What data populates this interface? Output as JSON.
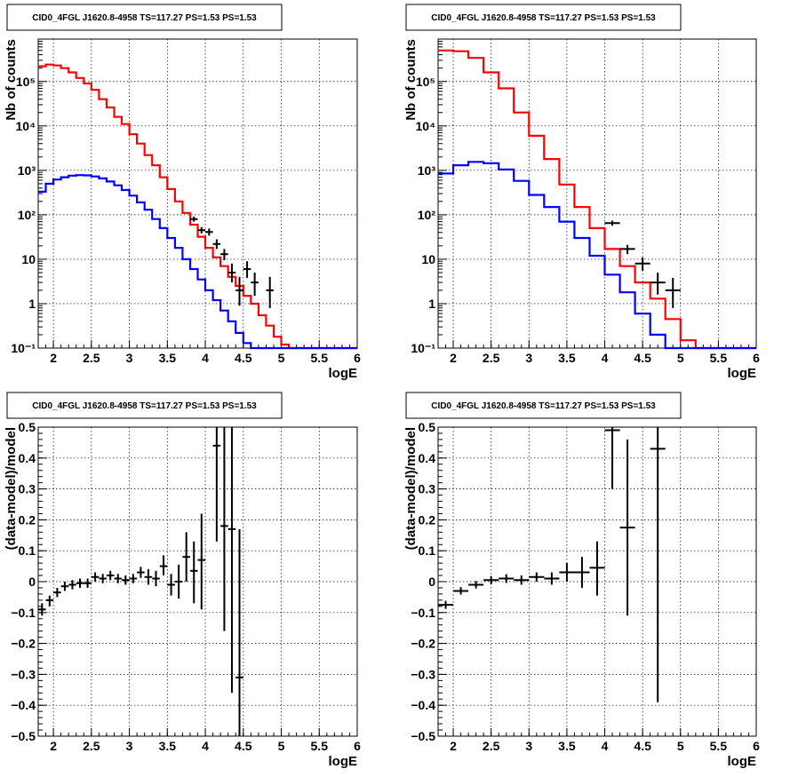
{
  "chart_data": [
    {
      "type": "line",
      "title": "CID0_4FGL J1620.8-4958 TS=117.27 PS=1.53 PS=1.53",
      "xlabel": "logE",
      "ylabel": "Nb of counts",
      "log_y": true,
      "grid": true,
      "xlim": [
        1.8,
        6
      ],
      "ylim": [
        0.1,
        900000
      ],
      "xticks": [
        2,
        2.5,
        3,
        3.5,
        4,
        4.5,
        5,
        5.5,
        6
      ],
      "xtick_labels": [
        "2",
        "2.5",
        "3",
        "3.5",
        "4",
        "4.5",
        "5",
        "5.5",
        "6"
      ],
      "yticks": [
        0.1,
        1,
        10,
        100,
        1000,
        10000,
        100000
      ],
      "ytick_labels": [
        "10⁻¹",
        "1",
        "10",
        "10²",
        "10³",
        "10⁴",
        "10⁵"
      ],
      "series": [
        {
          "style": "step",
          "color": "#ff0000",
          "edges": [
            1.8,
            1.9,
            2.0,
            2.1,
            2.2,
            2.3,
            2.4,
            2.5,
            2.6,
            2.7,
            2.8,
            2.9,
            3.0,
            3.1,
            3.2,
            3.3,
            3.4,
            3.5,
            3.6,
            3.7,
            3.8,
            3.9,
            4.0,
            4.1,
            4.2,
            4.3,
            4.4,
            4.5,
            4.6,
            4.7,
            4.8,
            4.9,
            5.0,
            5.1,
            5.2,
            5.3,
            5.4,
            5.5,
            5.6,
            5.7,
            5.8,
            5.9,
            6.0
          ],
          "values": [
            220000,
            240000,
            230000,
            200000,
            160000,
            120000,
            90000,
            65000,
            40000,
            26000,
            16000,
            11000,
            6500,
            4000,
            2200,
            1300,
            700,
            380,
            200,
            110,
            60,
            32,
            18,
            11,
            7,
            4,
            2.5,
            1.5,
            1,
            0.55,
            0.32,
            0.18,
            0.12,
            0.1,
            0.1,
            0.1,
            0.1,
            0.1,
            0.1,
            0.1,
            0.1,
            0.1
          ]
        },
        {
          "style": "step",
          "color": "#0000ff",
          "edges": [
            1.8,
            1.9,
            2.0,
            2.1,
            2.2,
            2.3,
            2.4,
            2.5,
            2.6,
            2.7,
            2.8,
            2.9,
            3.0,
            3.1,
            3.2,
            3.3,
            3.4,
            3.5,
            3.6,
            3.7,
            3.8,
            3.9,
            4.0,
            4.1,
            4.2,
            4.3,
            4.4,
            4.5,
            4.6,
            4.7,
            4.8,
            4.9,
            5.0,
            5.1,
            5.2,
            5.3,
            5.4,
            5.5,
            5.6,
            5.7,
            5.8,
            5.9,
            6.0
          ],
          "values": [
            330,
            500,
            620,
            700,
            760,
            780,
            770,
            730,
            660,
            560,
            460,
            360,
            270,
            190,
            130,
            80,
            50,
            30,
            18,
            10,
            6,
            3.5,
            2,
            1.2,
            0.7,
            0.4,
            0.22,
            0.13,
            0.1,
            0.1,
            0.1,
            0.1,
            0.1,
            0.1,
            0.1,
            0.1,
            0.1,
            0.1,
            0.1,
            0.1,
            0.1,
            0.1
          ]
        },
        {
          "style": "errorbar",
          "color": "#000000",
          "points": [
            {
              "x": 3.85,
              "y": 80,
              "xerr": 0.05,
              "ylo": 70,
              "yhi": 91
            },
            {
              "x": 3.95,
              "y": 45,
              "xerr": 0.05,
              "ylo": 38,
              "yhi": 53
            },
            {
              "x": 4.05,
              "y": 41,
              "xerr": 0.05,
              "ylo": 34,
              "yhi": 49
            },
            {
              "x": 4.15,
              "y": 22,
              "xerr": 0.05,
              "ylo": 17,
              "yhi": 28
            },
            {
              "x": 4.25,
              "y": 13,
              "xerr": 0.05,
              "ylo": 9.5,
              "yhi": 17
            },
            {
              "x": 4.35,
              "y": 5,
              "xerr": 0.05,
              "ylo": 3,
              "yhi": 8
            },
            {
              "x": 4.45,
              "y": 2,
              "xerr": 0.05,
              "ylo": 0.9,
              "yhi": 4
            },
            {
              "x": 4.55,
              "y": 6,
              "xerr": 0.05,
              "ylo": 3.8,
              "yhi": 9
            },
            {
              "x": 4.65,
              "y": 3,
              "xerr": 0.05,
              "ylo": 1.5,
              "yhi": 5
            },
            {
              "x": 4.85,
              "y": 2,
              "xerr": 0.05,
              "ylo": 0.8,
              "yhi": 4
            }
          ]
        }
      ]
    },
    {
      "type": "line",
      "title": "CID0_4FGL J1620.8-4958 TS=117.27 PS=1.53 PS=1.53",
      "xlabel": "logE",
      "ylabel": "Nb of counts",
      "log_y": true,
      "grid": true,
      "xlim": [
        1.8,
        6
      ],
      "ylim": [
        0.1,
        900000
      ],
      "xticks": [
        2,
        2.5,
        3,
        3.5,
        4,
        4.5,
        5,
        5.5,
        6
      ],
      "xtick_labels": [
        "2",
        "2.5",
        "3",
        "3.5",
        "4",
        "4.5",
        "5",
        "5.5",
        "6"
      ],
      "yticks": [
        0.1,
        1,
        10,
        100,
        1000,
        10000,
        100000
      ],
      "ytick_labels": [
        "10⁻¹",
        "1",
        "10",
        "10²",
        "10³",
        "10⁴",
        "10⁵"
      ],
      "series": [
        {
          "style": "step",
          "color": "#ff0000",
          "edges": [
            1.8,
            2.0,
            2.2,
            2.4,
            2.6,
            2.8,
            3.0,
            3.2,
            3.4,
            3.6,
            3.8,
            4.0,
            4.2,
            4.4,
            4.6,
            4.8,
            5.0,
            5.2,
            5.4,
            5.6,
            5.8,
            6.0
          ],
          "values": [
            500000,
            480000,
            340000,
            160000,
            70000,
            20000,
            6000,
            1800,
            480,
            150,
            50,
            17,
            7,
            3,
            1.3,
            0.45,
            0.15,
            0.1,
            0.1,
            0.1,
            0.1
          ]
        },
        {
          "style": "step",
          "color": "#0000ff",
          "edges": [
            1.8,
            2.0,
            2.2,
            2.4,
            2.6,
            2.8,
            3.0,
            3.2,
            3.4,
            3.6,
            3.8,
            4.0,
            4.2,
            4.4,
            4.6,
            4.8,
            5.0,
            5.2,
            5.4,
            5.6,
            5.8,
            6.0
          ],
          "values": [
            850,
            1300,
            1550,
            1450,
            1050,
            580,
            280,
            150,
            70,
            30,
            12,
            4.5,
            1.8,
            0.6,
            0.2,
            0.1,
            0.1,
            0.1,
            0.1,
            0.1,
            0.1
          ]
        },
        {
          "style": "errorbar",
          "color": "#000000",
          "points": [
            {
              "x": 4.1,
              "y": 65,
              "xerr": 0.1,
              "ylo": 57,
              "yhi": 74
            },
            {
              "x": 4.3,
              "y": 17,
              "xerr": 0.1,
              "ylo": 13,
              "yhi": 21
            },
            {
              "x": 4.5,
              "y": 8,
              "xerr": 0.1,
              "ylo": 5.5,
              "yhi": 11
            },
            {
              "x": 4.7,
              "y": 3,
              "xerr": 0.1,
              "ylo": 1.6,
              "yhi": 5
            },
            {
              "x": 4.9,
              "y": 2,
              "xerr": 0.1,
              "ylo": 0.8,
              "yhi": 3.8
            }
          ]
        }
      ]
    },
    {
      "type": "scatter",
      "title": "CID0_4FGL J1620.8-4958 TS=117.27 PS=1.53 PS=1.53",
      "xlabel": "logE",
      "ylabel": "(data-model)/model",
      "log_y": false,
      "grid": true,
      "xlim": [
        1.8,
        6
      ],
      "ylim": [
        -0.5,
        0.5
      ],
      "xticks": [
        2,
        2.5,
        3,
        3.5,
        4,
        4.5,
        5,
        5.5,
        6
      ],
      "xtick_labels": [
        "2",
        "2.5",
        "3",
        "3.5",
        "4",
        "4.5",
        "5",
        "5.5",
        "6"
      ],
      "yticks": [
        -0.5,
        -0.4,
        -0.3,
        -0.2,
        -0.1,
        0,
        0.1,
        0.2,
        0.3,
        0.4,
        0.5
      ],
      "ytick_labels": [
        "−0.5",
        "−0.4",
        "−0.3",
        "−0.2",
        "−0.1",
        "0",
        "0.1",
        "0.2",
        "0.3",
        "0.4",
        "0.5"
      ],
      "series": [
        {
          "style": "errorbar",
          "color": "#000000",
          "points": [
            {
              "x": 1.85,
              "y": -0.09,
              "xerr": 0.05,
              "ylo": -0.11,
              "yhi": -0.07
            },
            {
              "x": 1.95,
              "y": -0.06,
              "xerr": 0.05,
              "ylo": -0.08,
              "yhi": -0.045
            },
            {
              "x": 2.05,
              "y": -0.035,
              "xerr": 0.05,
              "ylo": -0.05,
              "yhi": -0.02
            },
            {
              "x": 2.15,
              "y": -0.015,
              "xerr": 0.05,
              "ylo": -0.03,
              "yhi": 0.0
            },
            {
              "x": 2.25,
              "y": -0.01,
              "xerr": 0.05,
              "ylo": -0.025,
              "yhi": 0.005
            },
            {
              "x": 2.35,
              "y": -0.005,
              "xerr": 0.05,
              "ylo": -0.02,
              "yhi": 0.01
            },
            {
              "x": 2.45,
              "y": -0.005,
              "xerr": 0.05,
              "ylo": -0.02,
              "yhi": 0.01
            },
            {
              "x": 2.55,
              "y": 0.015,
              "xerr": 0.05,
              "ylo": 0.0,
              "yhi": 0.03
            },
            {
              "x": 2.65,
              "y": 0.01,
              "xerr": 0.05,
              "ylo": -0.005,
              "yhi": 0.025
            },
            {
              "x": 2.75,
              "y": 0.02,
              "xerr": 0.05,
              "ylo": 0.005,
              "yhi": 0.035
            },
            {
              "x": 2.85,
              "y": 0.01,
              "xerr": 0.05,
              "ylo": -0.005,
              "yhi": 0.025
            },
            {
              "x": 2.95,
              "y": 0.005,
              "xerr": 0.05,
              "ylo": -0.01,
              "yhi": 0.02
            },
            {
              "x": 3.05,
              "y": 0.01,
              "xerr": 0.05,
              "ylo": -0.005,
              "yhi": 0.025
            },
            {
              "x": 3.15,
              "y": 0.03,
              "xerr": 0.05,
              "ylo": 0.012,
              "yhi": 0.048
            },
            {
              "x": 3.25,
              "y": 0.015,
              "xerr": 0.05,
              "ylo": -0.01,
              "yhi": 0.04
            },
            {
              "x": 3.35,
              "y": 0.01,
              "xerr": 0.05,
              "ylo": -0.015,
              "yhi": 0.035
            },
            {
              "x": 3.45,
              "y": 0.05,
              "xerr": 0.05,
              "ylo": 0.02,
              "yhi": 0.085
            },
            {
              "x": 3.55,
              "y": -0.01,
              "xerr": 0.05,
              "ylo": -0.045,
              "yhi": 0.025
            },
            {
              "x": 3.65,
              "y": 0.0,
              "xerr": 0.05,
              "ylo": -0.055,
              "yhi": 0.055
            },
            {
              "x": 3.75,
              "y": 0.08,
              "xerr": 0.05,
              "ylo": 0.0,
              "yhi": 0.16
            },
            {
              "x": 3.85,
              "y": 0.035,
              "xerr": 0.05,
              "ylo": -0.07,
              "yhi": 0.13
            },
            {
              "x": 3.95,
              "y": 0.07,
              "xerr": 0.05,
              "ylo": -0.09,
              "yhi": 0.22
            },
            {
              "x": 4.15,
              "y": 0.44,
              "xerr": 0.05,
              "ylo": 0.13,
              "yhi": 0.5
            },
            {
              "x": 4.25,
              "y": 0.18,
              "xerr": 0.05,
              "ylo": -0.16,
              "yhi": 0.5
            },
            {
              "x": 4.35,
              "y": 0.17,
              "xerr": 0.05,
              "ylo": -0.36,
              "yhi": 0.5
            },
            {
              "x": 4.45,
              "y": -0.31,
              "xerr": 0.05,
              "ylo": -0.5,
              "yhi": 0.17
            }
          ]
        }
      ]
    },
    {
      "type": "scatter",
      "title": "CID0_4FGL J1620.8-4958 TS=117.27 PS=1.53 PS=1.53",
      "xlabel": "logE",
      "ylabel": "(data-model)/model",
      "log_y": false,
      "grid": true,
      "xlim": [
        1.8,
        6
      ],
      "ylim": [
        -0.5,
        0.5
      ],
      "xticks": [
        2,
        2.5,
        3,
        3.5,
        4,
        4.5,
        5,
        5.5,
        6
      ],
      "xtick_labels": [
        "2",
        "2.5",
        "3",
        "3.5",
        "4",
        "4.5",
        "5",
        "5.5",
        "6"
      ],
      "yticks": [
        -0.5,
        -0.4,
        -0.3,
        -0.2,
        -0.1,
        0,
        0.1,
        0.2,
        0.3,
        0.4,
        0.5
      ],
      "ytick_labels": [
        "−0.5",
        "−0.4",
        "−0.3",
        "−0.2",
        "−0.1",
        "0",
        "0.1",
        "0.2",
        "0.3",
        "0.4",
        "0.5"
      ],
      "series": [
        {
          "style": "errorbar",
          "color": "#000000",
          "points": [
            {
              "x": 1.9,
              "y": -0.075,
              "xerr": 0.1,
              "ylo": -0.088,
              "yhi": -0.062
            },
            {
              "x": 2.1,
              "y": -0.03,
              "xerr": 0.1,
              "ylo": -0.042,
              "yhi": -0.018
            },
            {
              "x": 2.3,
              "y": -0.01,
              "xerr": 0.1,
              "ylo": -0.022,
              "yhi": 0.002
            },
            {
              "x": 2.5,
              "y": 0.005,
              "xerr": 0.1,
              "ylo": -0.008,
              "yhi": 0.018
            },
            {
              "x": 2.7,
              "y": 0.01,
              "xerr": 0.1,
              "ylo": -0.004,
              "yhi": 0.024
            },
            {
              "x": 2.9,
              "y": 0.005,
              "xerr": 0.1,
              "ylo": -0.01,
              "yhi": 0.02
            },
            {
              "x": 3.1,
              "y": 0.015,
              "xerr": 0.1,
              "ylo": 0.0,
              "yhi": 0.03
            },
            {
              "x": 3.3,
              "y": 0.01,
              "xerr": 0.1,
              "ylo": -0.01,
              "yhi": 0.03
            },
            {
              "x": 3.5,
              "y": 0.03,
              "xerr": 0.1,
              "ylo": 0.0,
              "yhi": 0.06
            },
            {
              "x": 3.7,
              "y": 0.03,
              "xerr": 0.1,
              "ylo": -0.02,
              "yhi": 0.08
            },
            {
              "x": 3.9,
              "y": 0.045,
              "xerr": 0.1,
              "ylo": -0.045,
              "yhi": 0.13
            },
            {
              "x": 4.1,
              "y": 0.49,
              "xerr": 0.1,
              "ylo": 0.3,
              "yhi": 0.5
            },
            {
              "x": 4.3,
              "y": 0.175,
              "xerr": 0.1,
              "ylo": -0.11,
              "yhi": 0.46
            },
            {
              "x": 4.7,
              "y": 0.43,
              "xerr": 0.1,
              "ylo": -0.39,
              "yhi": 0.5
            }
          ]
        }
      ]
    }
  ]
}
